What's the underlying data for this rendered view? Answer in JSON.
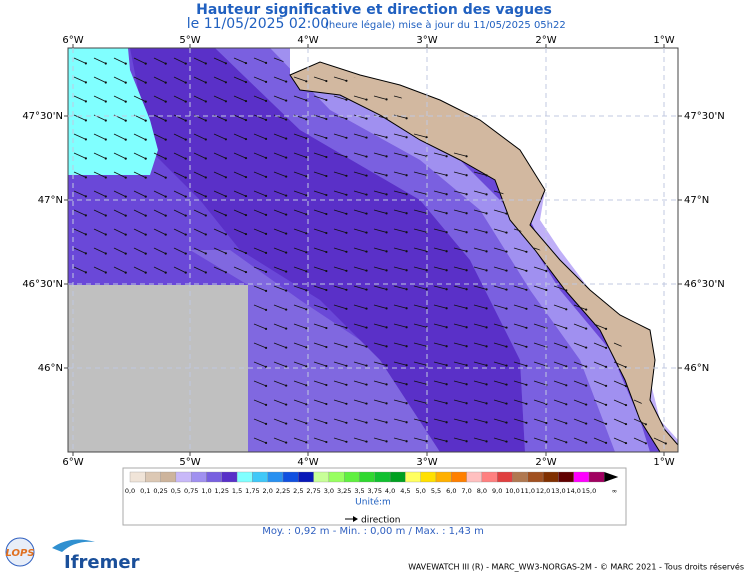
{
  "header": {
    "title": "Hauteur significative et direction des vagues",
    "date": "le 11/05/2025 02:00",
    "update": "(heure légale) mise à jour du 11/05/2025 05h22"
  },
  "axes": {
    "lon_labels": [
      "6°W",
      "5°W",
      "4°W",
      "3°W",
      "2°W",
      "1°W"
    ],
    "lat_labels": [
      "47°30'N",
      "47°N",
      "46°30'N",
      "46°N"
    ]
  },
  "legend": {
    "colors": [
      "#f0e4d8",
      "#dcc8b4",
      "#cdb49c",
      "#c8b8f8",
      "#a090f0",
      "#7860e0",
      "#5830c8",
      "#80ffff",
      "#40c8f8",
      "#2890f0",
      "#1050e0",
      "#0818b8",
      "#c8ff98",
      "#98ff60",
      "#60f040",
      "#30d830",
      "#10c030",
      "#00a020",
      "#ffff60",
      "#ffe000",
      "#ffb000",
      "#ff8000",
      "#ffc0c0",
      "#ff8080",
      "#e04040",
      "#b07850",
      "#a05020",
      "#803000",
      "#600000",
      "#ff00ff",
      "#a00060"
    ],
    "labels": [
      "0,0",
      "0,1",
      "0,25",
      "0,5",
      "0,75",
      "1,0",
      "1,25",
      "1,5",
      "1,75",
      "2,0",
      "2,25",
      "2,5",
      "2,75",
      "3,0",
      "3,25",
      "3,5",
      "3,75",
      "4,0",
      "4,5",
      "5,0",
      "5,5",
      "6,0",
      "7,0",
      "8,0",
      "9,0",
      "10,0",
      "11,0",
      "12,0",
      "13,0",
      "14,0",
      "15,0",
      "∞"
    ],
    "unit": "Unité:m",
    "direction": "direction"
  },
  "stats": "Moy. : 0,92 m   -   Min. : 0,00 m / Max. : 1,43 m",
  "footer": {
    "credit": "WAVEWATCH III (R) - MARC_WW3-NORGAS-2M - © MARC 2021 - Tous droits réservés",
    "logo_lops": "LOPS",
    "logo_ifremer": "Ifremer"
  }
}
